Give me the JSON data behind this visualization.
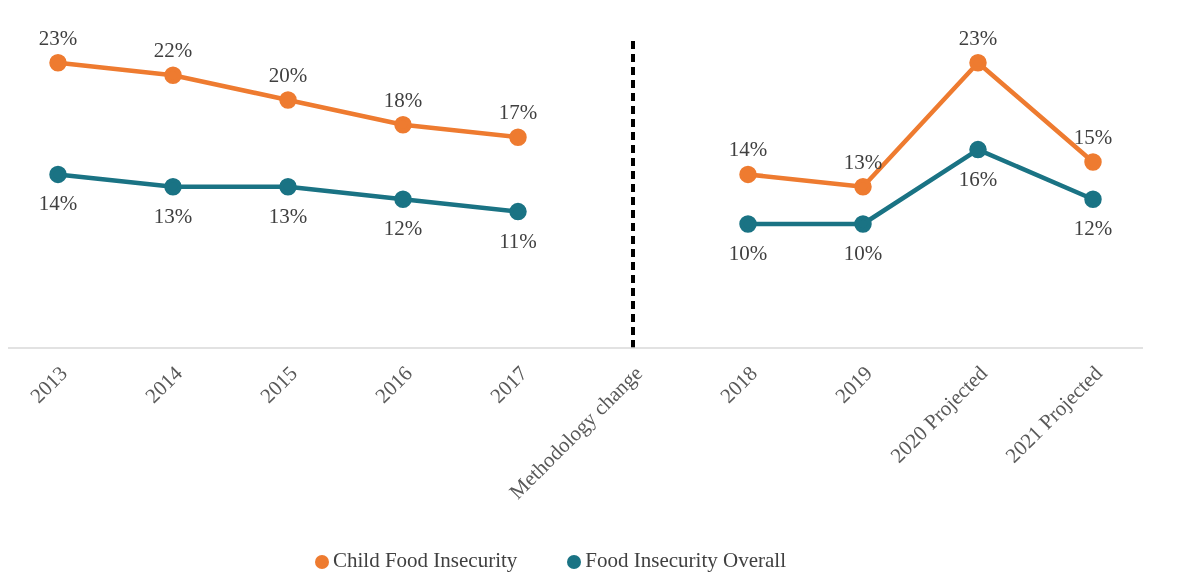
{
  "chart_data": {
    "type": "line",
    "categories": [
      "2013",
      "2014",
      "2015",
      "2016",
      "2017",
      "Methodology change",
      "2018",
      "2019",
      "2020 Projected",
      "2021 Projected"
    ],
    "series": [
      {
        "name": "Food Insecurity Overall",
        "color": "#1a7384",
        "values": [
          14,
          13,
          13,
          12,
          11,
          null,
          10,
          10,
          16,
          12
        ],
        "value_labels": [
          "14%",
          "13%",
          "13%",
          "12%",
          "11%",
          null,
          "10%",
          "10%",
          "16%",
          "12%"
        ]
      },
      {
        "name": "Child Food Insecurity",
        "color": "#ee7b30",
        "values": [
          23,
          22,
          20,
          18,
          17,
          null,
          14,
          13,
          23,
          15
        ],
        "value_labels": [
          "23%",
          "22%",
          "20%",
          "18%",
          "17%",
          null,
          "14%",
          "13%",
          "23%",
          "15%"
        ]
      }
    ],
    "ylim": [
      0,
      25
    ],
    "tick_labels": "x",
    "grid": false,
    "legend": "bottom",
    "marker": "circle",
    "line_style": "solid",
    "ref_lines": [
      {
        "axis": "x",
        "value": "Methodology change",
        "color": "#000000",
        "line_style": "dashed"
      }
    ]
  }
}
